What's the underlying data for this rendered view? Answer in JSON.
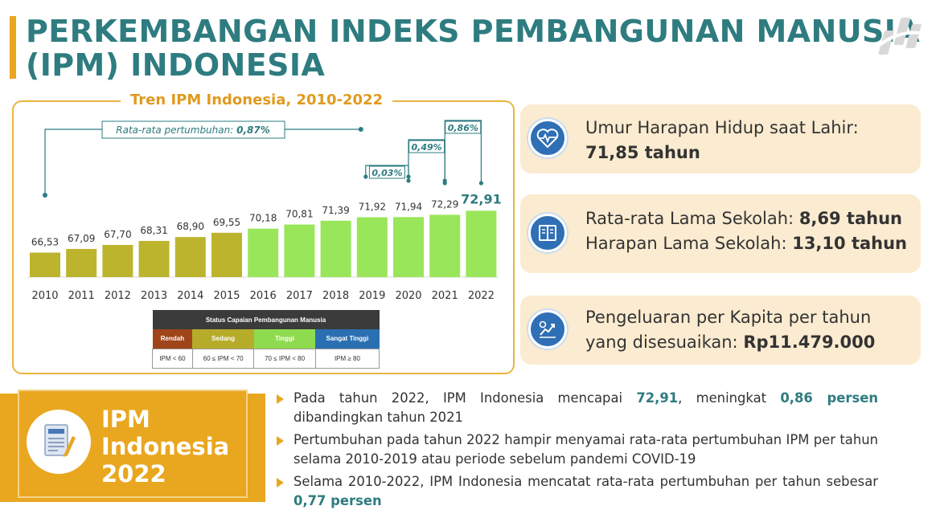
{
  "header": {
    "title_line1": "PERKEMBANGAN INDEKS PEMBANGUNAN MANUSIA",
    "title_line2": "(IPM) INDONESIA",
    "logo_icon": "bps-logo-icon"
  },
  "chart_data": {
    "type": "bar",
    "title": "Tren IPM Indonesia, 2010-2022",
    "categories": [
      "2010",
      "2011",
      "2012",
      "2013",
      "2014",
      "2015",
      "2016",
      "2017",
      "2018",
      "2019",
      "2020",
      "2021",
      "2022"
    ],
    "values": [
      66.53,
      67.09,
      67.7,
      68.31,
      68.9,
      69.55,
      70.18,
      70.81,
      71.39,
      71.92,
      71.94,
      72.29,
      72.91
    ],
    "value_labels": [
      "66,53",
      "67,09",
      "67,70",
      "68,31",
      "68,90",
      "69,55",
      "70,18",
      "70,81",
      "71,39",
      "71,92",
      "71,94",
      "72,29",
      "72,91"
    ],
    "bar_colors": [
      "#BDB42E",
      "#BDB42E",
      "#BDB42E",
      "#BDB42E",
      "#BDB42E",
      "#BDB42E",
      "#9AE65A",
      "#9AE65A",
      "#9AE65A",
      "#9AE65A",
      "#9AE65A",
      "#9AE65A",
      "#9AE65A"
    ],
    "highlight_color": "#2E7C80",
    "annotations": [
      {
        "text_prefix": "Rata-rata pertumbuhan: ",
        "text_value": "0,87%",
        "from": "2010",
        "to": "2019"
      },
      {
        "text": "0,03%",
        "from": "2019",
        "to": "2020"
      },
      {
        "text": "0,49%",
        "from": "2020",
        "to": "2021"
      },
      {
        "text": "0,86%",
        "from": "2021",
        "to": "2022"
      }
    ]
  },
  "status_table": {
    "header": "Status Capaian Pembangunan Manusia",
    "categories": [
      {
        "label": "Rendah",
        "range": "IPM < 60",
        "color": "#A0441A"
      },
      {
        "label": "Sedang",
        "range": "60 ≤ IPM < 70",
        "color": "#B7AC2A"
      },
      {
        "label": "Tinggi",
        "range": "70 ≤ IPM < 80",
        "color": "#8FDB4F"
      },
      {
        "label": "Sangat Tinggi",
        "range": "IPM ≥ 80",
        "color": "#2A6FB2"
      }
    ]
  },
  "info_cards": {
    "life": {
      "icon": "heart-pulse-icon",
      "label": "Umur Harapan Hidup saat Lahir:",
      "value": "71,85 tahun"
    },
    "school": {
      "icon": "book-icon",
      "label1": "Rata-rata Lama Sekolah: ",
      "value1": "8,69 tahun",
      "label2": "Harapan Lama Sekolah: ",
      "value2": "13,10 tahun"
    },
    "spend": {
      "icon": "money-growth-icon",
      "line1": "Pengeluaran per Kapita per tahun",
      "line2": "yang disesuaikan: ",
      "value": "Rp11.479.000"
    }
  },
  "ipm_panel": {
    "icon": "document-icon",
    "line1": "IPM",
    "line2": "Indonesia",
    "line3": "2022"
  },
  "bullets": {
    "b1": {
      "t1": "Pada tahun 2022, IPM Indonesia mencapai ",
      "h1": "72,91",
      "t2": ", meningkat ",
      "h2": "0,86 persen",
      "t3": " dibandingkan tahun 2021"
    },
    "b2": {
      "t1": "Pertumbuhan pada tahun 2022 hampir menyamai rata-rata pertumbuhan IPM per tahun selama 2010-2019 atau periode sebelum pandemi COVID-19"
    },
    "b3": {
      "t1": "Selama 2010-2022, IPM Indonesia mencatat rata-rata pertumbuhan per tahun sebesar ",
      "h1": "0,77 persen"
    }
  }
}
